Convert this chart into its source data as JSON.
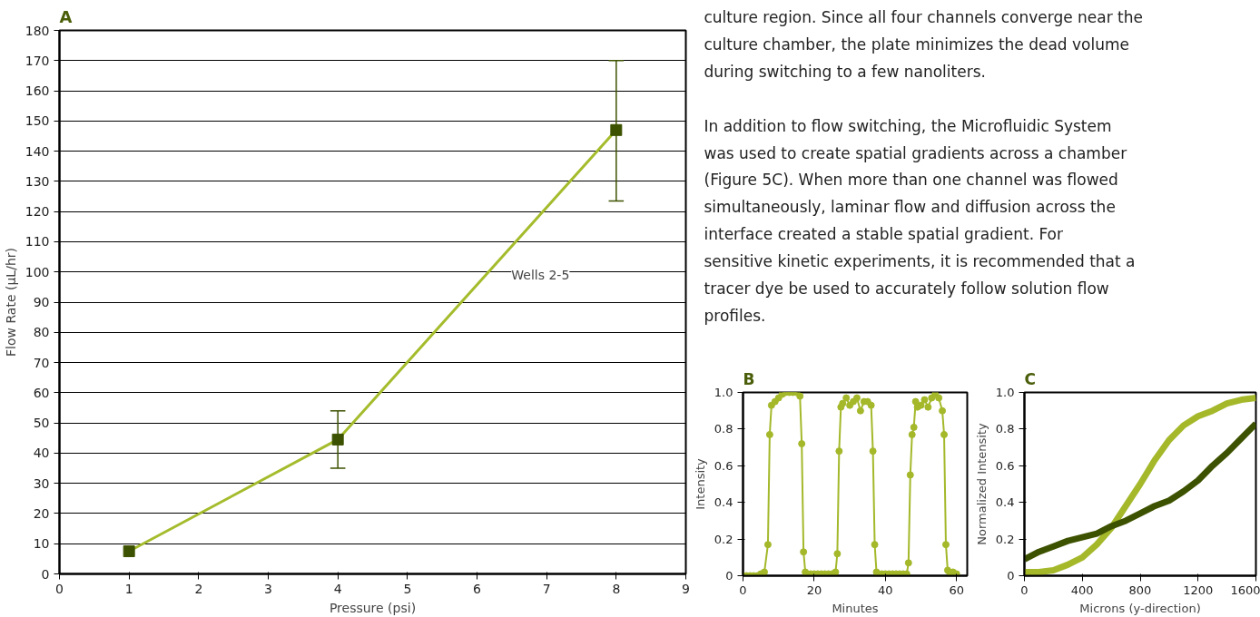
{
  "chart_data": [
    {
      "type": "line",
      "title": "A",
      "xlabel": "Pressure (psi)",
      "ylabel": "Flow Rate (µL/hr)",
      "xlim": [
        0,
        9
      ],
      "xticks": [
        0,
        1,
        2,
        3,
        4,
        5,
        6,
        7,
        8,
        9
      ],
      "ylim": [
        0,
        180
      ],
      "yticks": [
        0,
        10,
        20,
        30,
        40,
        50,
        60,
        70,
        80,
        90,
        100,
        110,
        120,
        130,
        140,
        150,
        160,
        170,
        180
      ],
      "grid": "y",
      "marker": "square",
      "x": [
        1,
        4,
        8
      ],
      "series": [
        {
          "color": "#a4bc2c",
          "colors": [
            "#3d5200",
            "#3d5200",
            "#3d5200"
          ],
          "values": [
            7.5,
            44.5,
            147
          ],
          "errors": [
            null,
            [
              35,
              54
            ],
            [
              123.5,
              170
            ]
          ]
        }
      ],
      "annotations": [
        "Wells 2-5"
      ]
    },
    {
      "type": "other",
      "annotations": [
        "culture region. Since all four channels converge near the culture chamber, the plate minimizes the dead volume during switching to a few nanoliters.",
        "In addition to flow switching, the Microfluidic System was used to create spatial gradients across a chamber (Figure 5C). When more than one channel was flowed simultaneously, laminar flow and diffusion across the interface created a stable spatial gradient. For sensitive kinetic experiments, it is recommended that a tracer dye be used to accurately follow solution flow profiles."
      ]
    },
    {
      "type": "line",
      "title": "B",
      "xlabel": "Minutes",
      "ylabel": "Intensity",
      "xlim": [
        0,
        63
      ],
      "xticks": [
        0,
        20,
        40,
        60
      ],
      "ylim": [
        0,
        1
      ],
      "yticks": [
        0,
        0.2,
        0.4,
        0.6,
        0.8,
        {
          "value": 1,
          "label": "1.0"
        }
      ],
      "marker": "circle",
      "x": [
        0,
        1,
        2,
        3,
        4,
        5,
        6,
        7,
        7.5,
        8,
        9,
        10,
        11,
        12,
        13,
        14,
        15,
        16,
        16.5,
        17,
        17.5,
        18,
        19,
        20,
        21,
        22,
        23,
        24,
        25,
        26,
        26.5,
        27,
        27.5,
        28,
        29,
        30,
        31,
        32,
        33,
        34,
        35,
        36,
        36.5,
        37,
        37.5,
        38,
        39,
        40,
        41,
        42,
        43,
        44,
        45,
        46,
        46.5,
        47,
        47.5,
        48,
        48.5,
        49,
        50,
        51,
        52,
        53,
        54,
        55,
        56,
        56.5,
        57,
        57.5,
        58,
        59,
        60
      ],
      "series": [
        {
          "color": "#a4b82a",
          "values": [
            0,
            0,
            0,
            0,
            0,
            0.01,
            0.02,
            0.17,
            0.77,
            0.93,
            0.95,
            0.97,
            0.99,
            1.0,
            1.0,
            1.0,
            1.0,
            0.98,
            0.72,
            0.13,
            0.02,
            0.01,
            0.01,
            0.01,
            0.01,
            0.01,
            0.01,
            0.01,
            0.01,
            0.02,
            0.12,
            0.68,
            0.92,
            0.94,
            0.97,
            0.93,
            0.95,
            0.97,
            0.9,
            0.95,
            0.95,
            0.93,
            0.68,
            0.17,
            0.02,
            0.01,
            0.01,
            0.01,
            0.01,
            0.01,
            0.01,
            0.01,
            0.01,
            0.01,
            0.07,
            0.55,
            0.77,
            0.81,
            0.95,
            0.92,
            0.93,
            0.96,
            0.92,
            0.97,
            0.99,
            0.97,
            0.9,
            0.77,
            0.17,
            0.03,
            0.02,
            0.02,
            0.01
          ]
        }
      ]
    },
    {
      "type": "line",
      "title": "C",
      "xlabel": "Microns (y-direction)",
      "ylabel": "Normalized Intensity",
      "xlim": [
        0,
        1600
      ],
      "xticks": [
        0,
        400,
        800,
        1200,
        1600
      ],
      "ylim": [
        0,
        1
      ],
      "yticks": [
        0,
        0.2,
        0.4,
        0.6,
        0.8,
        {
          "value": 1,
          "label": "1.0"
        }
      ],
      "x": [
        0,
        100,
        200,
        300,
        400,
        500,
        600,
        700,
        800,
        900,
        1000,
        1100,
        1200,
        1300,
        1400,
        1500,
        1600
      ],
      "series": [
        {
          "color": "#a4b82a",
          "values": [
            0.02,
            0.02,
            0.03,
            0.06,
            0.1,
            0.17,
            0.26,
            0.38,
            0.5,
            0.63,
            0.74,
            0.82,
            0.87,
            0.9,
            0.94,
            0.96,
            0.97
          ]
        },
        {
          "color": "#3d5200",
          "values": [
            0.09,
            0.13,
            0.16,
            0.19,
            0.21,
            0.23,
            0.27,
            0.3,
            0.34,
            0.38,
            0.41,
            0.46,
            0.52,
            0.6,
            0.67,
            0.75,
            0.83
          ]
        }
      ]
    }
  ]
}
